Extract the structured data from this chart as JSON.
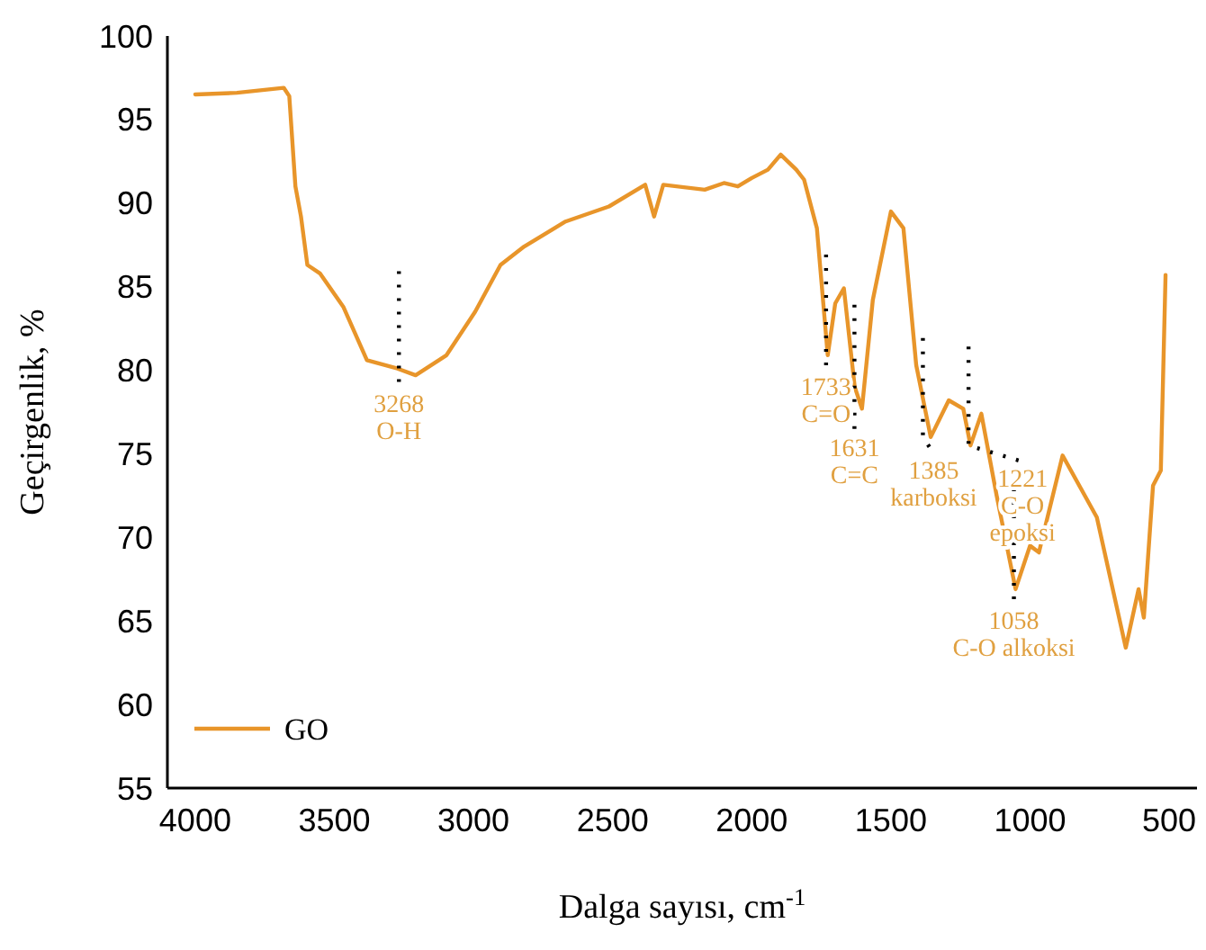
{
  "chart_data": {
    "type": "line",
    "xlabel": "Dalga sayısı, cm$^{-1}$",
    "ylabel": "Geçirgenlik, %",
    "xlim": [
      4100,
      400
    ],
    "xticks": [
      4000,
      3500,
      3000,
      2500,
      2000,
      1500,
      1000,
      500
    ],
    "ylim": [
      55,
      100
    ],
    "yticks": [
      55,
      60,
      65,
      70,
      75,
      80,
      85,
      90,
      95,
      100
    ],
    "grid": false,
    "legend": "bottom left",
    "marker": "none",
    "line_style": "solid",
    "series": [
      {
        "name": "GO",
        "color": "#e8952a",
        "x": [
          4000,
          3850,
          3682,
          3662,
          3640,
          3620,
          3597,
          3552,
          3468,
          3383,
          3273,
          3208,
          3097,
          2994,
          2903,
          2818,
          2669,
          2513,
          2383,
          2351,
          2318,
          2169,
          2100,
          2050,
          2000,
          1942,
          1896,
          1840,
          1812,
          1766,
          1727,
          1700,
          1669,
          1630,
          1604,
          1565,
          1500,
          1455,
          1409,
          1357,
          1292,
          1240,
          1214,
          1175,
          1120,
          1052,
          1000,
          968,
          883,
          760,
          656,
          610,
          591,
          558,
          530,
          513
        ],
        "values": [
          96.5,
          96.6,
          96.9,
          96.4,
          91.0,
          89.2,
          86.3,
          85.8,
          83.8,
          80.6,
          80.1,
          79.7,
          80.9,
          83.5,
          86.3,
          87.4,
          88.9,
          89.8,
          91.1,
          89.2,
          91.1,
          90.8,
          91.2,
          91.0,
          91.5,
          92.0,
          92.9,
          92.0,
          91.4,
          88.5,
          80.9,
          84.0,
          84.9,
          79.0,
          77.7,
          84.2,
          89.5,
          88.5,
          80.3,
          76.0,
          78.2,
          77.7,
          75.5,
          77.4,
          72.5,
          66.9,
          69.5,
          69.1,
          74.9,
          71.2,
          63.4,
          66.9,
          65.2,
          73.1,
          74.0,
          85.7
        ]
      }
    ],
    "annotations": [
      {
        "text": "3268\nO-H",
        "x": 3268,
        "y": 80
      },
      {
        "text": "1733\nC=O",
        "x": 1733,
        "y": 81
      },
      {
        "text": "1631\nC=C",
        "x": 1631,
        "y": 78
      },
      {
        "text": "1385\nkarboksi",
        "x": 1385,
        "y": 76
      },
      {
        "text": "1221\nC-O\nepoksi",
        "x": 1221,
        "y": 75.5
      },
      {
        "text": "1058\nC-O alkoksi",
        "x": 1058,
        "y": 67
      }
    ]
  }
}
